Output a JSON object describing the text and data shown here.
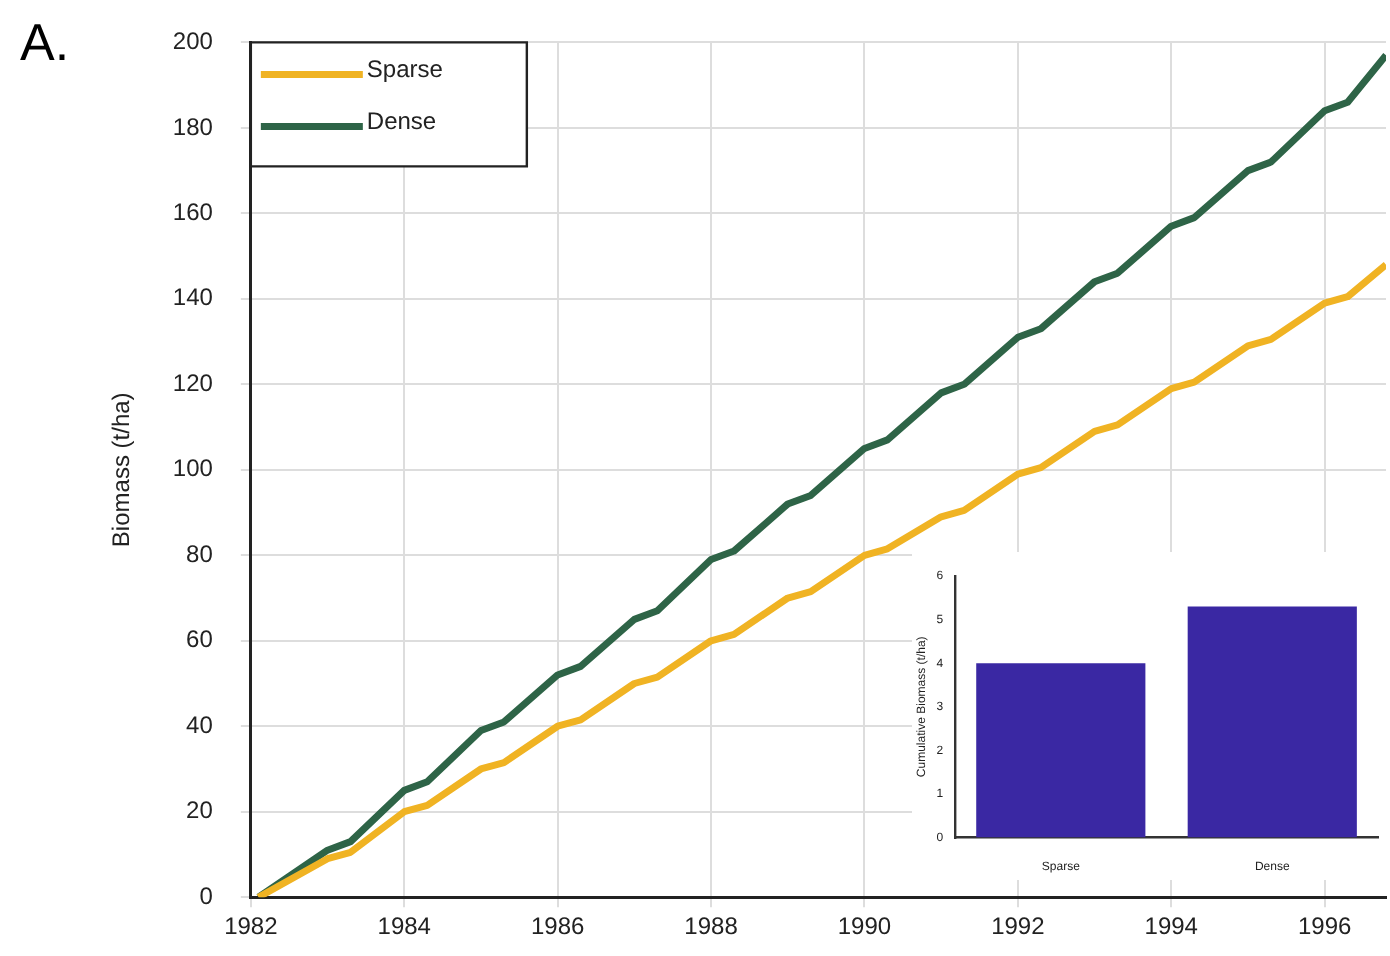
{
  "chart_data": [
    {
      "type": "line",
      "title": "A.",
      "ylabel": "Biomass (t/ha)",
      "xlim": [
        1982,
        1996.8
      ],
      "xticks": [
        1982,
        1984,
        1986,
        1988,
        1990,
        1992,
        1994,
        1996
      ],
      "ylim": [
        0,
        200
      ],
      "yticks": [
        0,
        20,
        40,
        60,
        80,
        100,
        120,
        140,
        160,
        180,
        200
      ],
      "grid": true,
      "legend": "top left",
      "marker": "none",
      "line_style": "solid",
      "x": [
        1982.1,
        1983,
        1983.3,
        1984,
        1984.3,
        1985,
        1985.3,
        1986,
        1986.3,
        1987,
        1987.3,
        1988,
        1988.3,
        1989,
        1989.3,
        1990,
        1990.3,
        1991,
        1991.3,
        1992,
        1992.3,
        1993,
        1993.3,
        1994,
        1994.3,
        1995,
        1995.3,
        1996,
        1996.3,
        1996.8
      ],
      "series": [
        {
          "name": "Sparse",
          "color": "#f0b323",
          "values": [
            0,
            9,
            10.5,
            20,
            21.5,
            30,
            31.5,
            40,
            41.5,
            50,
            51.5,
            60,
            61.5,
            70,
            71.5,
            80,
            81.5,
            89,
            90.5,
            99,
            100.5,
            109,
            110.5,
            119,
            120.5,
            129,
            130.5,
            139,
            140.5,
            148
          ]
        },
        {
          "name": "Dense",
          "color": "#2e6447",
          "values": [
            0,
            11,
            13,
            25,
            27,
            39,
            41,
            52,
            54,
            65,
            67,
            79,
            81,
            92,
            94,
            105,
            107,
            118,
            120,
            131,
            133,
            144,
            146,
            157,
            159,
            170,
            172,
            184,
            186,
            197
          ]
        }
      ]
    },
    {
      "type": "bar",
      "ylabel": "Cumulative Biomass (t/ha)",
      "categories": [
        "Sparse",
        "Dense"
      ],
      "values": [
        4.0,
        5.3
      ],
      "color": "#3a28a3",
      "ylim": [
        0,
        6
      ],
      "yticks": [
        0,
        1,
        2,
        3,
        4,
        5,
        6
      ],
      "grid": false
    }
  ]
}
